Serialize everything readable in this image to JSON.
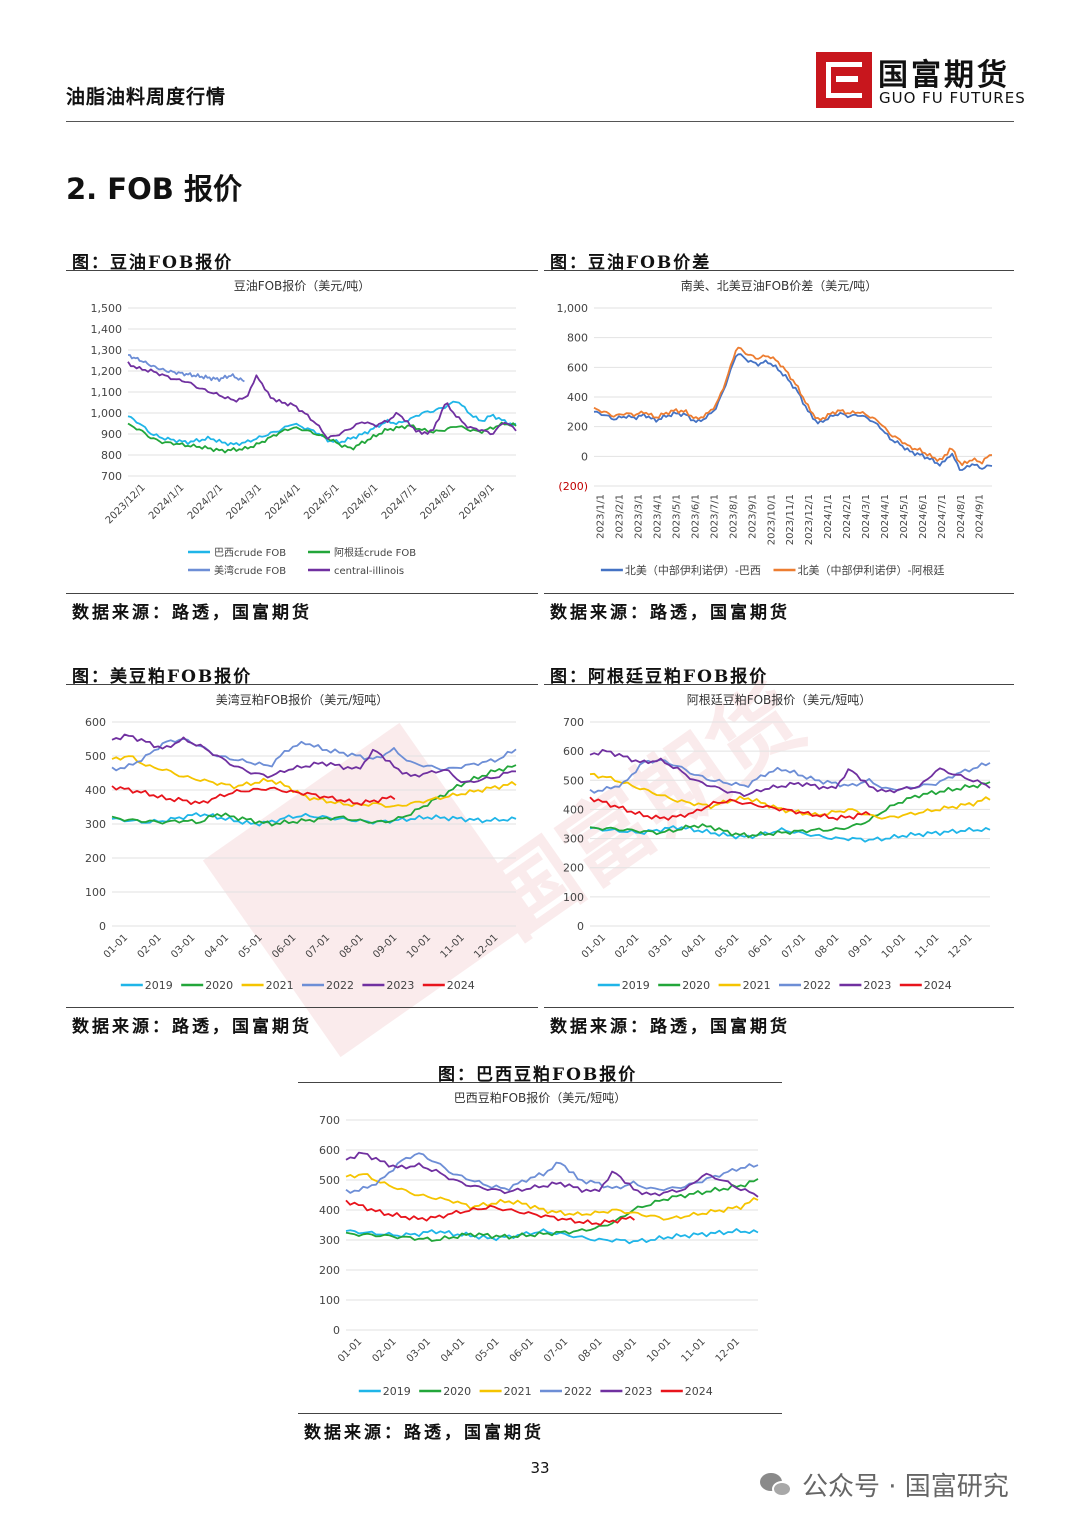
{
  "header": {
    "doc_title": "油脂油料周度行情",
    "logo_cn": "国富期货",
    "logo_en": "GUO FU FUTURES"
  },
  "section_title": "2. FOB 报价",
  "page_number": "33",
  "footer_brand": "公众号 · 国富研究",
  "colors": {
    "series_2019": "#1fb5e8",
    "series_2020": "#22a63a",
    "series_2021": "#f5c400",
    "series_2022": "#6d8ed6",
    "series_2023": "#7030a0",
    "series_2024": "#e8141c",
    "north_brazil": "#4472c4",
    "north_argentina": "#ed7d31",
    "brand_red": "#c8161d"
  },
  "charts": {
    "c1": {
      "caption": "图：豆油FOB报价",
      "source": "数据来源：路透，国富期货"
    },
    "c2": {
      "caption": "图：豆油FOB价差",
      "source": "数据来源：路透，国富期货"
    },
    "c3": {
      "caption": "图：美豆粕FOB报价",
      "source": "数据来源：路透，国富期货"
    },
    "c4": {
      "caption": "图：阿根廷豆粕FOB报价",
      "source": "数据来源：路透，国富期货"
    },
    "c5": {
      "caption": "图：巴西豆粕FOB报价",
      "source": "数据来源：路透，国富期货"
    }
  },
  "chart_data": [
    {
      "id": "c1",
      "type": "line",
      "title": "豆油FOB报价（美元/吨）",
      "ylim": [
        700,
        1500
      ],
      "yticks": [
        "700",
        "800",
        "900",
        "1,000",
        "1,100",
        "1,200",
        "1,300",
        "1,400",
        "1,500"
      ],
      "ytick_values": [
        700,
        800,
        900,
        1000,
        1100,
        1200,
        1300,
        1400,
        1500
      ],
      "x_labels": [
        "2023/12/1",
        "2024/1/1",
        "2024/2/1",
        "2024/3/1",
        "2024/4/1",
        "2024/5/1",
        "2024/6/1",
        "2024/7/1",
        "2024/8/1",
        "2024/9/1"
      ],
      "series": [
        {
          "name": "巴西crude FOB",
          "color": "#1fb5e8",
          "values": [
            985,
            950,
            900,
            880,
            870,
            860,
            870,
            880,
            860,
            850,
            860,
            880,
            900,
            920,
            950,
            930,
            910,
            870,
            860,
            880,
            900,
            930,
            960,
            950,
            970,
            1000,
            1010,
            1030,
            1060,
            1000,
            960,
            990,
            960,
            940
          ]
        },
        {
          "name": "阿根廷crude FOB",
          "color": "#22a63a",
          "values": [
            945,
            920,
            880,
            860,
            855,
            845,
            840,
            830,
            820,
            825,
            830,
            850,
            880,
            910,
            930,
            920,
            900,
            880,
            850,
            830,
            860,
            890,
            920,
            930,
            940,
            920,
            910,
            920,
            940,
            920,
            910,
            930,
            950,
            940
          ]
        },
        {
          "name": "美湾crude FOB",
          "color": "#6d8ed6",
          "values": [
            1275,
            1250,
            1220,
            1200,
            1190,
            1180,
            1170,
            1160,
            1180,
            1150
          ]
        },
        {
          "name": "central-illinois",
          "color": "#7030a0",
          "values": [
            1235,
            1210,
            1200,
            1180,
            1160,
            1150,
            1120,
            1100,
            1080,
            1060,
            1070,
            1180,
            1080,
            1050,
            1040,
            1000,
            950,
            880,
            900,
            930,
            960,
            940,
            960,
            1000,
            940,
            900,
            920,
            1050,
            980,
            930,
            920,
            900,
            960,
            920
          ]
        }
      ]
    },
    {
      "id": "c2",
      "type": "line",
      "title": "南美、北美豆油FOB价差（美元/吨）",
      "ylim": [
        -200,
        1000
      ],
      "yticks": [
        "(200)",
        "0",
        "200",
        "400",
        "600",
        "800",
        "1,000"
      ],
      "ytick_values": [
        -200,
        0,
        200,
        400,
        600,
        800,
        1000
      ],
      "x_labels": [
        "2023/1/1",
        "2023/2/1",
        "2023/3/1",
        "2023/4/1",
        "2023/5/1",
        "2023/6/1",
        "2023/7/1",
        "2023/8/1",
        "2023/9/1",
        "2023/10/1",
        "2023/11/1",
        "2023/12/1",
        "2024/1/1",
        "2024/2/1",
        "2024/3/1",
        "2024/4/1",
        "2024/5/1",
        "2024/6/1",
        "2024/7/1",
        "2024/8/1",
        "2024/9/1"
      ],
      "series": [
        {
          "name": "北美（中部伊利诺伊）-巴西",
          "color": "#4472c4",
          "values": [
            300,
            280,
            250,
            270,
            260,
            280,
            240,
            270,
            290,
            280,
            230,
            260,
            330,
            500,
            700,
            650,
            620,
            640,
            590,
            520,
            430,
            300,
            220,
            260,
            290,
            270,
            280,
            250,
            200,
            120,
            80,
            30,
            10,
            -20,
            -60,
            20,
            -100,
            -50,
            -80,
            -60
          ]
        },
        {
          "name": "北美（中部伊利诺伊）-阿根廷",
          "color": "#ed7d31",
          "values": [
            320,
            300,
            270,
            290,
            280,
            300,
            260,
            290,
            310,
            300,
            250,
            280,
            350,
            520,
            740,
            690,
            660,
            680,
            640,
            560,
            460,
            330,
            240,
            280,
            310,
            290,
            300,
            270,
            230,
            150,
            110,
            60,
            40,
            0,
            -30,
            60,
            -60,
            -20,
            -40,
            20
          ]
        }
      ]
    },
    {
      "id": "c3",
      "type": "line",
      "title": "美湾豆粕FOB报价（美元/短吨）",
      "ylim": [
        0,
        600
      ],
      "yticks": [
        "0",
        "100",
        "200",
        "300",
        "400",
        "500",
        "600"
      ],
      "ytick_values": [
        0,
        100,
        200,
        300,
        400,
        500,
        600
      ],
      "x_labels": [
        "01-01",
        "02-01",
        "03-01",
        "04-01",
        "05-01",
        "06-01",
        "07-01",
        "08-01",
        "09-01",
        "10-01",
        "11-01",
        "12-01"
      ],
      "series": [
        {
          "name": "2019",
          "color": "#1fb5e8",
          "values": [
            315,
            310,
            305,
            310,
            320,
            330,
            320,
            310,
            300,
            305,
            320,
            325,
            320,
            315,
            310,
            305,
            310,
            315,
            320,
            318,
            315,
            310,
            312,
            315
          ]
        },
        {
          "name": "2020",
          "color": "#22a63a",
          "values": [
            318,
            312,
            308,
            305,
            310,
            305,
            330,
            320,
            310,
            300,
            305,
            310,
            315,
            320,
            310,
            305,
            310,
            330,
            360,
            390,
            420,
            440,
            460,
            470
          ]
        },
        {
          "name": "2021",
          "color": "#f5c400",
          "values": [
            490,
            500,
            470,
            460,
            440,
            430,
            420,
            410,
            420,
            430,
            410,
            380,
            370,
            360,
            355,
            360,
            350,
            360,
            370,
            380,
            390,
            400,
            410,
            420
          ]
        },
        {
          "name": "2022",
          "color": "#6d8ed6",
          "values": [
            460,
            470,
            500,
            540,
            550,
            530,
            500,
            490,
            480,
            470,
            520,
            540,
            520,
            510,
            500,
            490,
            520,
            480,
            470,
            460,
            470,
            480,
            490,
            520
          ]
        },
        {
          "name": "2023",
          "color": "#7030a0",
          "values": [
            550,
            560,
            540,
            520,
            550,
            530,
            500,
            470,
            450,
            440,
            460,
            470,
            480,
            470,
            460,
            520,
            470,
            440,
            450,
            460,
            420,
            430,
            440,
            460
          ]
        },
        {
          "name": "2024",
          "color": "#e8141c",
          "values": [
            410,
            400,
            390,
            375,
            370,
            360,
            380,
            395,
            400,
            405,
            395,
            390,
            380,
            370,
            360,
            370,
            380
          ]
        }
      ]
    },
    {
      "id": "c4",
      "type": "line",
      "title": "阿根廷豆粕FOB报价（美元/短吨）",
      "ylim": [
        0,
        700
      ],
      "yticks": [
        "0",
        "100",
        "200",
        "300",
        "400",
        "500",
        "600",
        "700"
      ],
      "ytick_values": [
        0,
        100,
        200,
        300,
        400,
        500,
        600,
        700
      ],
      "x_labels": [
        "01-01",
        "02-01",
        "03-01",
        "04-01",
        "05-01",
        "06-01",
        "07-01",
        "08-01",
        "09-01",
        "10-01",
        "11-01",
        "12-01"
      ],
      "series": [
        {
          "name": "2019",
          "color": "#1fb5e8",
          "values": [
            335,
            330,
            325,
            320,
            330,
            340,
            330,
            320,
            310,
            305,
            315,
            330,
            320,
            310,
            300,
            300,
            295,
            300,
            310,
            315,
            320,
            325,
            330,
            330
          ]
        },
        {
          "name": "2020",
          "color": "#22a63a",
          "values": [
            335,
            335,
            330,
            325,
            320,
            330,
            345,
            340,
            320,
            310,
            315,
            320,
            325,
            330,
            330,
            340,
            360,
            400,
            430,
            450,
            460,
            470,
            480,
            490
          ]
        },
        {
          "name": "2021",
          "color": "#f5c400",
          "values": [
            520,
            510,
            490,
            470,
            450,
            430,
            420,
            410,
            430,
            440,
            420,
            400,
            390,
            380,
            390,
            400,
            380,
            370,
            380,
            390,
            400,
            410,
            420,
            440
          ]
        },
        {
          "name": "2022",
          "color": "#6d8ed6",
          "values": [
            460,
            470,
            490,
            560,
            570,
            550,
            520,
            500,
            490,
            480,
            520,
            540,
            520,
            500,
            490,
            480,
            500,
            470,
            470,
            480,
            490,
            520,
            540,
            560
          ]
        },
        {
          "name": "2023",
          "color": "#7030a0",
          "values": [
            590,
            600,
            580,
            560,
            570,
            540,
            500,
            480,
            460,
            450,
            470,
            480,
            490,
            480,
            470,
            540,
            480,
            460,
            470,
            480,
            540,
            520,
            500,
            480
          ]
        },
        {
          "name": "2024",
          "color": "#e8141c",
          "values": [
            440,
            420,
            400,
            380,
            370,
            375,
            390,
            420,
            430,
            420,
            410,
            400,
            390,
            380,
            370,
            375,
            390
          ]
        }
      ]
    },
    {
      "id": "c5",
      "type": "line",
      "title": "巴西豆粕FOB报价（美元/短吨）",
      "ylim": [
        0,
        700
      ],
      "yticks": [
        "0",
        "100",
        "200",
        "300",
        "400",
        "500",
        "600",
        "700"
      ],
      "ytick_values": [
        0,
        100,
        200,
        300,
        400,
        500,
        600,
        700
      ],
      "x_labels": [
        "01-01",
        "02-01",
        "03-01",
        "04-01",
        "05-01",
        "06-01",
        "07-01",
        "08-01",
        "09-01",
        "10-01",
        "11-01",
        "12-01"
      ],
      "series": [
        {
          "name": "2019",
          "color": "#1fb5e8",
          "values": [
            330,
            325,
            320,
            315,
            320,
            330,
            320,
            315,
            305,
            310,
            320,
            330,
            320,
            310,
            300,
            300,
            295,
            300,
            310,
            315,
            320,
            325,
            330,
            325
          ]
        },
        {
          "name": "2020",
          "color": "#22a63a",
          "values": [
            320,
            318,
            315,
            310,
            305,
            300,
            310,
            320,
            315,
            310,
            315,
            320,
            325,
            330,
            340,
            360,
            400,
            420,
            440,
            450,
            460,
            470,
            480,
            500
          ]
        },
        {
          "name": "2021",
          "color": "#f5c400",
          "values": [
            510,
            520,
            490,
            470,
            450,
            440,
            430,
            410,
            420,
            430,
            420,
            400,
            390,
            385,
            390,
            400,
            390,
            380,
            370,
            380,
            390,
            400,
            410,
            440
          ]
        },
        {
          "name": "2022",
          "color": "#6d8ed6",
          "values": [
            460,
            470,
            500,
            560,
            590,
            560,
            520,
            500,
            480,
            470,
            500,
            520,
            560,
            500,
            490,
            470,
            490,
            470,
            470,
            480,
            500,
            520,
            540,
            550
          ]
        },
        {
          "name": "2023",
          "color": "#7030a0",
          "values": [
            570,
            590,
            560,
            540,
            550,
            530,
            500,
            480,
            470,
            460,
            470,
            480,
            490,
            470,
            460,
            530,
            470,
            450,
            460,
            470,
            520,
            500,
            470,
            450
          ]
        },
        {
          "name": "2024",
          "color": "#e8141c",
          "values": [
            430,
            410,
            390,
            380,
            370,
            375,
            390,
            400,
            410,
            400,
            390,
            380,
            370,
            360,
            355,
            365,
            375
          ]
        }
      ]
    }
  ]
}
